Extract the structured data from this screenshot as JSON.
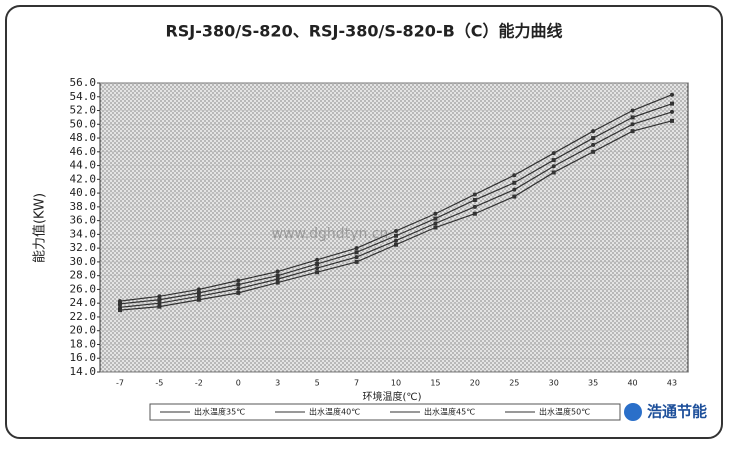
{
  "chart_data": {
    "type": "line",
    "title": "RSJ-380/S-820、RSJ-380/S-820-B（C）能力曲线",
    "y_label": "能力值(KW)",
    "x_label": "环境温度(℃)",
    "watermark": "www.dghdtyn.cn",
    "logo": "浩通节能",
    "categories": [
      "-7",
      "-5",
      "-2",
      "0",
      "3",
      "5",
      "7",
      "10",
      "15",
      "20",
      "25",
      "30",
      "35",
      "40",
      "43"
    ],
    "series": [
      {
        "name": "出水温度35℃",
        "color": "#333333",
        "values": [
          24.3,
          25.0,
          26.0,
          27.3,
          28.6,
          30.3,
          32.0,
          34.5,
          37.0,
          39.8,
          42.6,
          45.8,
          49.0,
          52.0,
          54.3
        ]
      },
      {
        "name": "出水温度40℃",
        "color": "#333333",
        "values": [
          23.9,
          24.5,
          25.5,
          26.7,
          28.0,
          29.7,
          31.4,
          33.8,
          36.3,
          39.0,
          41.5,
          44.8,
          48.0,
          51.0,
          53.0
        ]
      },
      {
        "name": "出水温度45℃",
        "color": "#333333",
        "values": [
          23.4,
          24.0,
          25.0,
          26.1,
          27.5,
          29.1,
          30.7,
          33.1,
          35.6,
          38.0,
          40.5,
          43.9,
          47.0,
          50.0,
          51.8
        ]
      },
      {
        "name": "出水温度50℃",
        "color": "#333333",
        "values": [
          23.0,
          23.5,
          24.5,
          25.5,
          27.0,
          28.5,
          30.0,
          32.5,
          35.0,
          37.0,
          39.5,
          43.0,
          46.0,
          49.0,
          50.5
        ]
      }
    ],
    "ylim": [
      14,
      56
    ],
    "yticks": [
      {
        "value": 14,
        "label": "14.0"
      },
      {
        "value": 16,
        "label": "16.0"
      },
      {
        "value": 18,
        "label": "18.0"
      },
      {
        "value": 20,
        "label": "20.0"
      },
      {
        "value": 22,
        "label": "22.0"
      },
      {
        "value": 24,
        "label": "24.0"
      },
      {
        "value": 26,
        "label": "26.0"
      },
      {
        "value": 28,
        "label": "28.0"
      },
      {
        "value": 30,
        "label": "30.0"
      },
      {
        "value": 32,
        "label": "32.0"
      },
      {
        "value": 34,
        "label": "34.0"
      },
      {
        "value": 36,
        "label": "36.0"
      },
      {
        "value": 38,
        "label": "38.0"
      },
      {
        "value": 40,
        "label": "40.0"
      },
      {
        "value": 42,
        "label": "42.0"
      },
      {
        "value": 44,
        "label": "44.0"
      },
      {
        "value": 46,
        "label": "46.0"
      },
      {
        "value": 48,
        "label": "48.0"
      },
      {
        "value": 50,
        "label": "50.0"
      },
      {
        "value": 52,
        "label": "52.0"
      },
      {
        "value": 54,
        "label": "54.0"
      },
      {
        "value": 56,
        "label": "56.0"
      }
    ],
    "grid": true
  }
}
